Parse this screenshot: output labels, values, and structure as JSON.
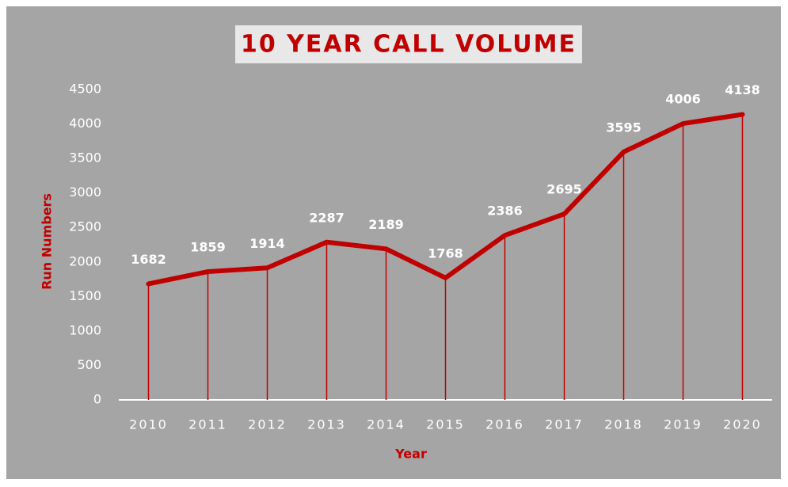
{
  "chart_data": {
    "type": "line",
    "title": "10 YEAR CALL VOLUME",
    "x_label": "Year",
    "y_label": "Run Numbers",
    "categories": [
      "2010",
      "2011",
      "2012",
      "2013",
      "2014",
      "2015",
      "2016",
      "2017",
      "2018",
      "2019",
      "2020"
    ],
    "values": [
      1682,
      1859,
      1914,
      2287,
      2189,
      1768,
      2386,
      2695,
      3595,
      4006,
      4138
    ],
    "color": "#c00000",
    "drop_lines": true,
    "data_labels": true,
    "ylim": [
      0,
      4500
    ],
    "yticks": [
      0,
      500,
      1000,
      1500,
      2000,
      2500,
      3000,
      3500,
      4000,
      4500
    ],
    "grid": false
  }
}
